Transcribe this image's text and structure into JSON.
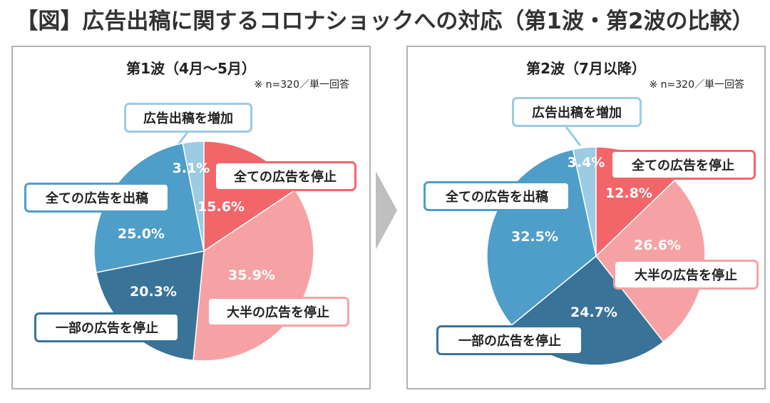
{
  "page_title": "【図】広告出稿に関するコロナショックへの対応（第1波・第2波の比較）",
  "colors": {
    "increase": "#9ccbe3",
    "stop_all": "#f2666a",
    "stop_most": "#f6a2a4",
    "stop_some": "#3a7398",
    "all_ads_placed": "#4e9ec9",
    "panel_border": "#b3b3b3",
    "arrow": "#bfbfbf"
  },
  "chart_data": [
    {
      "type": "pie",
      "title": "第1波（4月～5月）",
      "note": "※ n=320／単一回答",
      "slices": [
        {
          "label": "広告出稿を増加",
          "value": 3.1,
          "display": "3.1%",
          "color": "#9ccbe3"
        },
        {
          "label": "全ての広告を停止",
          "value": 15.6,
          "display": "15.6%",
          "color": "#f2666a"
        },
        {
          "label": "大半の広告を停止",
          "value": 35.9,
          "display": "35.9%",
          "color": "#f6a2a4"
        },
        {
          "label": "一部の広告を停止",
          "value": 20.3,
          "display": "20.3%",
          "color": "#3a7398"
        },
        {
          "label": "全ての広告を出稿",
          "value": 25.0,
          "display": "25.0%",
          "color": "#4e9ec9"
        }
      ]
    },
    {
      "type": "pie",
      "title": "第2波（7月以降）",
      "note": "※ n=320／単一回答",
      "slices": [
        {
          "label": "広告出稿を増加",
          "value": 3.4,
          "display": "3.4%",
          "color": "#9ccbe3"
        },
        {
          "label": "全ての広告を停止",
          "value": 12.8,
          "display": "12.8%",
          "color": "#f2666a"
        },
        {
          "label": "大半の広告を停止",
          "value": 26.6,
          "display": "26.6%",
          "color": "#f6a2a4"
        },
        {
          "label": "一部の広告を停止",
          "value": 24.7,
          "display": "24.7%",
          "color": "#3a7398"
        },
        {
          "label": "全ての広告を出稿",
          "value": 32.5,
          "display": "32.5%",
          "color": "#4e9ec9"
        }
      ]
    }
  ]
}
